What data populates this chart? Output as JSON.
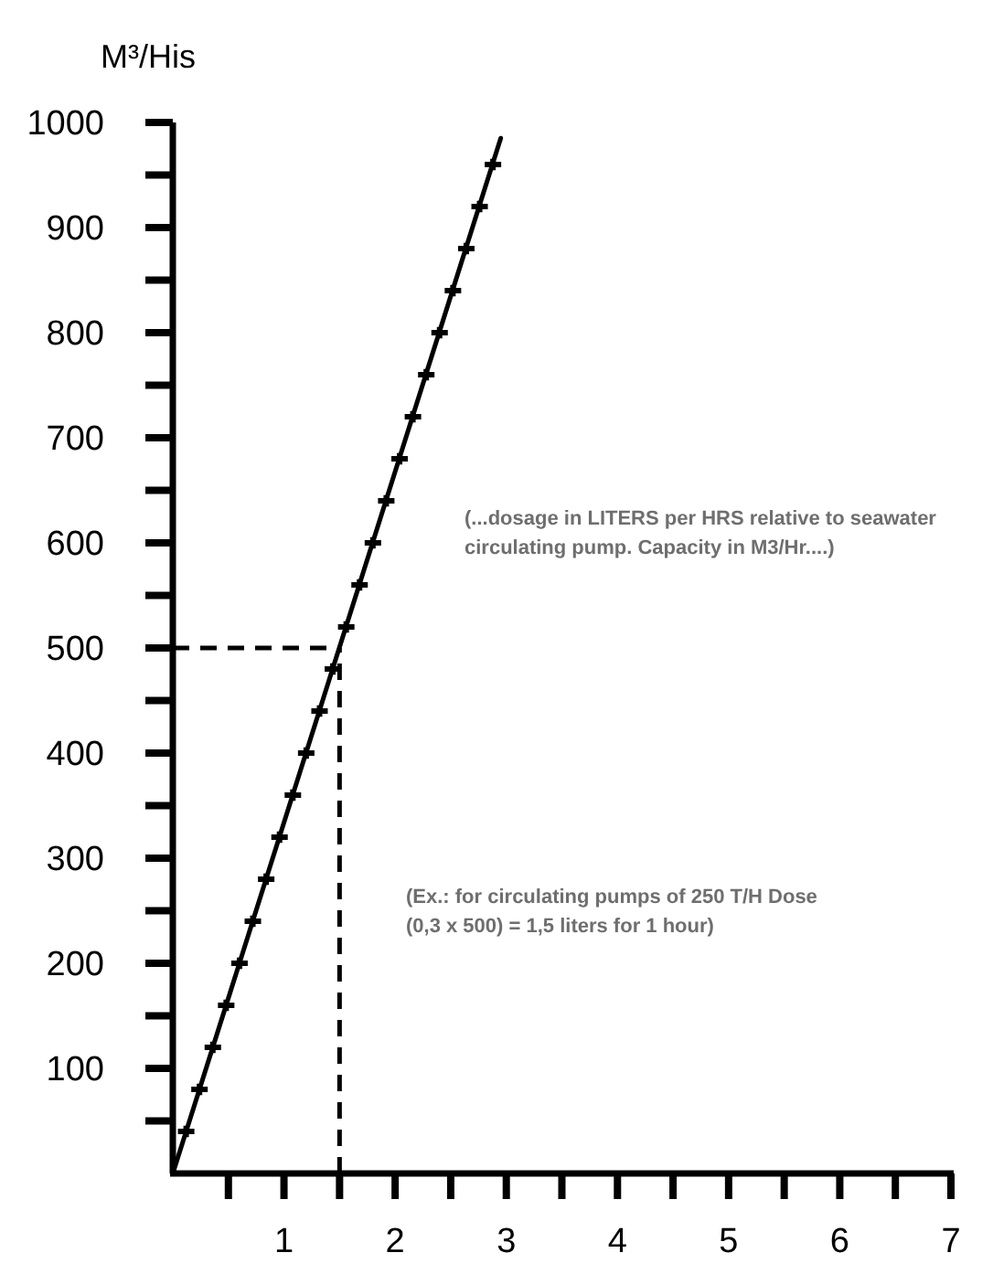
{
  "chart_data": {
    "type": "line",
    "ylabel": "M³/His",
    "annotations": [
      "(...dosage in LITERS per HRS relative to seawater circulating pump. Capacity in M3/Hr....)",
      "(Ex.: for circulating pumps of 250 T/H Dose (0,3 x 500) = 1,5 liters for 1 hour)"
    ],
    "xlim": [
      0,
      7
    ],
    "ylim": [
      0,
      1000
    ],
    "xticks": [
      {
        "value": 0.5,
        "label": null
      },
      1,
      {
        "value": 1.5,
        "label": null
      },
      2,
      {
        "value": 2.5,
        "label": null
      },
      3,
      {
        "value": 3.5,
        "label": null
      },
      4,
      {
        "value": 4.5,
        "label": null
      },
      5,
      {
        "value": 5.5,
        "label": null
      },
      6,
      {
        "value": 6.5,
        "label": null
      },
      7
    ],
    "yticks": [
      {
        "value": 50,
        "label": null
      },
      100,
      {
        "value": 150,
        "label": null
      },
      200,
      {
        "value": 250,
        "label": null
      },
      300,
      {
        "value": 350,
        "label": null
      },
      400,
      {
        "value": 450,
        "label": null
      },
      500,
      {
        "value": 550,
        "label": null
      },
      600,
      {
        "value": 650,
        "label": null
      },
      700,
      {
        "value": 750,
        "label": null
      },
      800,
      {
        "value": 850,
        "label": null
      },
      900,
      {
        "value": 950,
        "label": null
      },
      1000
    ],
    "series": [
      {
        "color": "#000000",
        "x": [
          0,
          2.95
        ],
        "values": [
          0,
          985
        ]
      },
      {
        "type": "scatter",
        "color": "#000000",
        "marker": "cross",
        "x": [
          0.12,
          0.24,
          0.36,
          0.48,
          0.6,
          0.72,
          0.84,
          0.96,
          1.08,
          1.2,
          1.32,
          1.44,
          1.56,
          1.68,
          1.8,
          1.92,
          2.04,
          2.16,
          2.28,
          2.4,
          2.52,
          2.64,
          2.76,
          2.88
        ],
        "values": [
          40,
          80,
          120,
          160,
          200,
          240,
          280,
          320,
          360,
          400,
          440,
          480,
          520,
          560,
          600,
          640,
          680,
          720,
          760,
          800,
          840,
          880,
          920,
          960
        ]
      }
    ],
    "ref_lines": [
      {
        "axis": "y",
        "value": 500,
        "color": "#000000",
        "line_style": "dashed"
      },
      {
        "axis": "x",
        "value": 1.5,
        "color": "#000000",
        "line_style": "dashed"
      }
    ]
  }
}
